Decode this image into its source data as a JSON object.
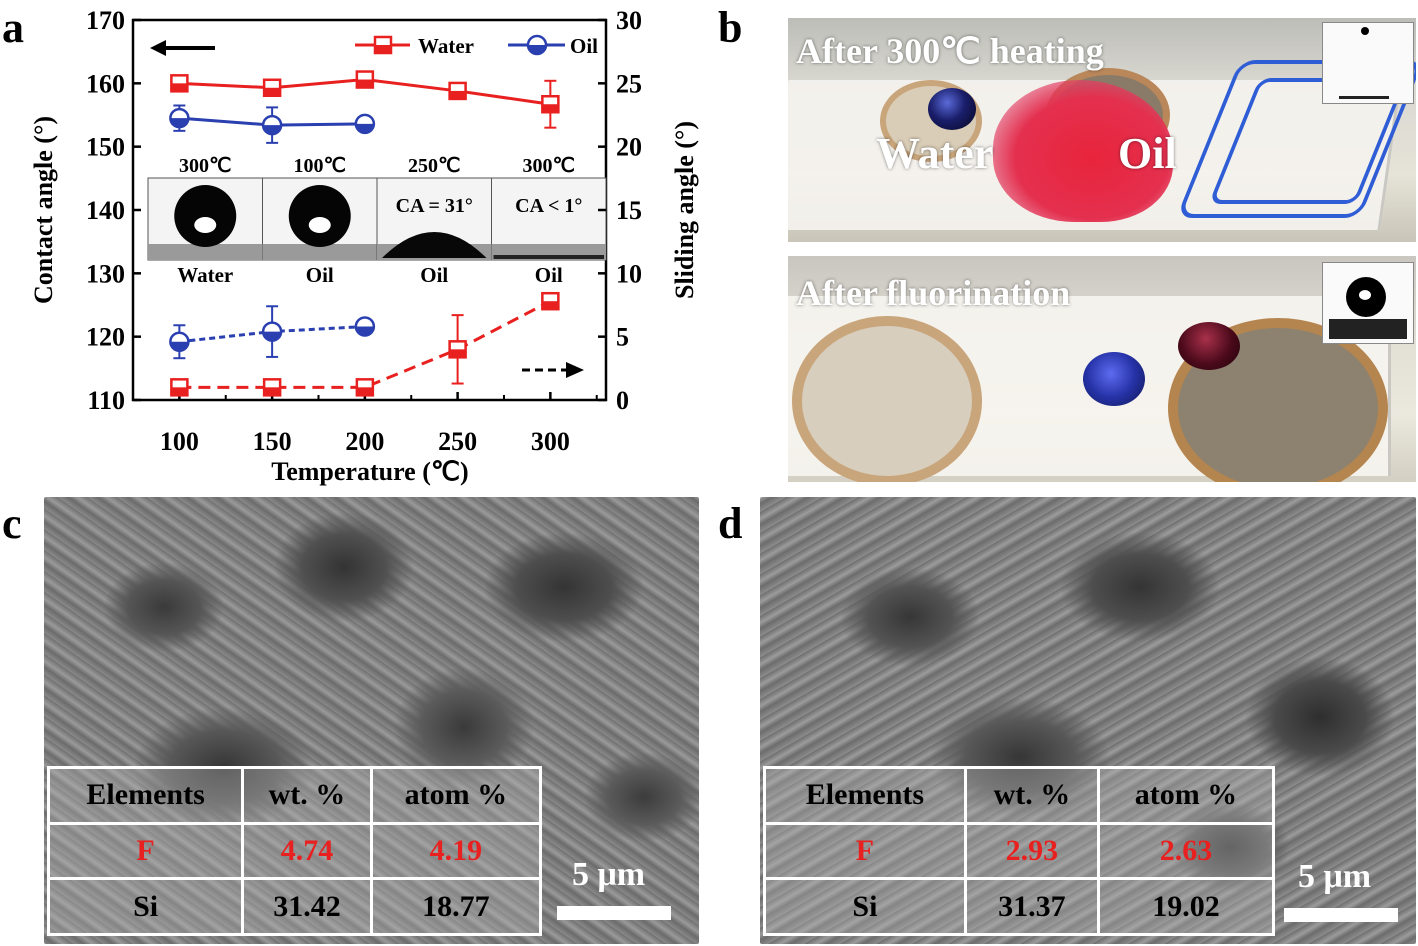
{
  "panels": {
    "a": "a",
    "b": "b",
    "c": "c",
    "d": "d"
  },
  "chart_data": {
    "type": "line",
    "xlabel": "Temperature (℃)",
    "ylabel_left": "Contact angle (°)",
    "ylabel_right": "Sliding angle (°)",
    "x": [
      100,
      150,
      200,
      250,
      300
    ],
    "xlim": [
      75,
      330
    ],
    "ylim_left": [
      110,
      170
    ],
    "ylim_right": [
      0,
      30
    ],
    "xticks": [
      "100",
      "150",
      "200",
      "250",
      "300"
    ],
    "yticks_left": [
      "110",
      "120",
      "130",
      "140",
      "150",
      "160",
      "170"
    ],
    "yticks_right": [
      "0",
      "5",
      "10",
      "15",
      "20",
      "25",
      "30"
    ],
    "legend": [
      "Water",
      "Oil"
    ],
    "legend_position": "top-right",
    "series": [
      {
        "name": "Water",
        "axis": "left",
        "color": "#e8201f",
        "marker": "square-half",
        "line": "solid",
        "x": [
          100,
          150,
          200,
          250,
          300
        ],
        "y": [
          160.0,
          159.3,
          160.6,
          158.8,
          156.7
        ],
        "err": [
          1.0,
          0.8,
          1.0,
          1.0,
          3.7
        ]
      },
      {
        "name": "Oil",
        "axis": "left",
        "color": "#2a3fb0",
        "marker": "circle-half",
        "line": "solid",
        "x": [
          100,
          150,
          200
        ],
        "y": [
          154.5,
          153.4,
          153.6
        ],
        "err": [
          2.0,
          2.8,
          0.8
        ]
      },
      {
        "name": "Water",
        "axis": "right",
        "color": "#e8201f",
        "marker": "square-half",
        "line": "dashed",
        "x": [
          100,
          150,
          200,
          250,
          300
        ],
        "y": [
          1.0,
          1.0,
          1.0,
          4.0,
          7.8
        ],
        "err": [
          0.3,
          0.3,
          0.3,
          2.7,
          0.4
        ]
      },
      {
        "name": "Oil",
        "axis": "right",
        "color": "#2a3fb0",
        "marker": "circle-half",
        "line": "dashed",
        "x": [
          100,
          150,
          200
        ],
        "y": [
          4.6,
          5.4,
          5.8
        ],
        "err": [
          1.3,
          2.0,
          0.3
        ]
      }
    ],
    "insets": [
      {
        "top": "300℃",
        "bottom": "Water",
        "content": ""
      },
      {
        "top": "100℃",
        "bottom": "Oil",
        "content": ""
      },
      {
        "top": "250℃",
        "bottom": "Oil",
        "content": "CA = 31°"
      },
      {
        "top": "300℃",
        "bottom": "Oil",
        "content": "CA < 1°"
      }
    ]
  },
  "photo_top": {
    "title": "After 300℃ heating",
    "water": "Water",
    "oil": "Oil"
  },
  "photo_bottom": {
    "title": "After fluorination"
  },
  "table_c": {
    "header": [
      "Elements",
      "wt. %",
      "atom %"
    ],
    "rows": [
      [
        "F",
        "4.74",
        "4.19"
      ],
      [
        "Si",
        "31.42",
        "18.77"
      ]
    ],
    "scale": "5 μm"
  },
  "table_d": {
    "header": [
      "Elements",
      "wt. %",
      "atom %"
    ],
    "rows": [
      [
        "F",
        "2.93",
        "2.63"
      ],
      [
        "Si",
        "31.37",
        "19.02"
      ]
    ],
    "scale": "5 μm"
  },
  "colors": {
    "water": "#e8201f",
    "oil": "#2a3fb0",
    "highlight": "#e8201f"
  }
}
